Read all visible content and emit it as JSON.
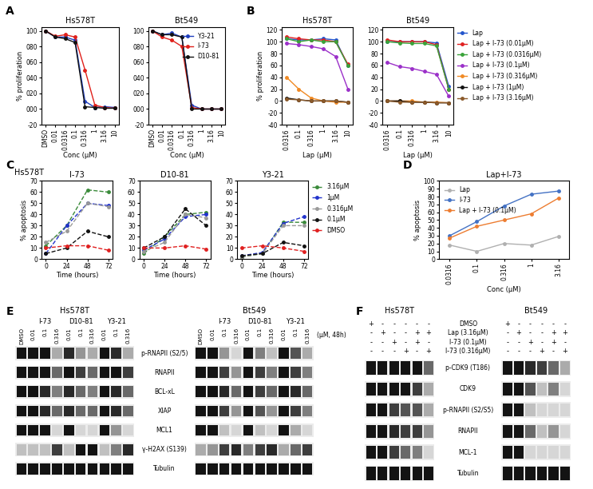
{
  "chart_data": [
    {
      "panel": "A",
      "type": "line",
      "title": "Hs578T",
      "categories": [
        "DMSO",
        "0.01",
        "0.0316",
        "0.1",
        "0.316",
        "1",
        "3.16",
        "10"
      ],
      "xlabel": "Conc (μM)",
      "ylabel": "% proliferation",
      "ylim": [
        -20,
        105
      ],
      "yticks": [
        -20,
        {
          "value": 0,
          "label": "000"
        },
        {
          "value": 20,
          "label": "020"
        },
        {
          "value": 40,
          "label": "040"
        },
        {
          "value": 60,
          "label": "060"
        },
        {
          "value": 80,
          "label": "080"
        },
        100
      ],
      "marker": "circle",
      "series": [
        {
          "color": "#1f3fbf",
          "values": [
            100,
            92,
            92,
            88,
            10,
            2,
            3,
            2
          ]
        },
        {
          "color": "#e0201b",
          "values": [
            100,
            93,
            95,
            92,
            50,
            5,
            2,
            1
          ]
        },
        {
          "color": "#111111",
          "values": [
            100,
            92,
            90,
            85,
            3,
            2,
            1,
            1
          ]
        }
      ]
    },
    {
      "type": "line",
      "title": "Bt549",
      "categories": [
        "DMSO",
        "0.01",
        "0.0316",
        "0.1",
        "0.316",
        "1",
        "3.16",
        "10"
      ],
      "xlabel": "Conc (μM)",
      "ylim": [
        -20,
        105
      ],
      "yticks": [
        -20,
        {
          "value": 0,
          "label": "000"
        },
        {
          "value": 20,
          "label": "020"
        },
        {
          "value": 40,
          "label": "040"
        },
        {
          "value": 60,
          "label": "060"
        },
        {
          "value": 80,
          "label": "080"
        },
        100
      ],
      "marker": "circle",
      "legend": "upper right",
      "series": [
        {
          "name": "Y3-21",
          "color": "#1f3fbf",
          "values": [
            100,
            95,
            97,
            92,
            5,
            0,
            0,
            0
          ]
        },
        {
          "name": "I-73",
          "color": "#e0201b",
          "values": [
            100,
            92,
            88,
            80,
            2,
            0,
            0,
            0
          ]
        },
        {
          "name": "D10-81",
          "color": "#111111",
          "values": [
            100,
            95,
            95,
            92,
            0,
            0,
            0,
            0
          ]
        }
      ]
    },
    {
      "panel": "B",
      "type": "line",
      "title": "Hs578T",
      "categories": [
        "0.0316",
        "0.1",
        "0.316",
        "1",
        "3.16",
        "10"
      ],
      "xlabel": "Lap (μM)",
      "ylabel": "% proliferation",
      "ylim": [
        -40,
        125
      ],
      "yticks": [
        -40,
        -20,
        0,
        20,
        40,
        60,
        80,
        100,
        120
      ],
      "marker": "circle",
      "series": [
        {
          "color": "#2255cc",
          "values": [
            105,
            103,
            103,
            105,
            103,
            60
          ]
        },
        {
          "color": "#e02020",
          "values": [
            108,
            105,
            103,
            103,
            100,
            62
          ]
        },
        {
          "color": "#3aa33a",
          "values": [
            105,
            100,
            103,
            100,
            100,
            60
          ]
        },
        {
          "color": "#9b30c9",
          "values": [
            97,
            95,
            92,
            88,
            75,
            20
          ]
        },
        {
          "color": "#f08a24",
          "values": [
            40,
            20,
            5,
            0,
            -2,
            -2
          ]
        },
        {
          "color": "#111111",
          "values": [
            5,
            2,
            0,
            0,
            0,
            -2
          ]
        },
        {
          "color": "#8b5a2b",
          "values": [
            3,
            2,
            0,
            0,
            0,
            -2
          ]
        }
      ]
    },
    {
      "type": "line",
      "title": "Bt549",
      "categories": [
        "0.0316",
        "0.1",
        "0.316",
        "1",
        "3.16",
        "10"
      ],
      "xlabel": "Lap (μM)",
      "ylim": [
        -40,
        125
      ],
      "yticks": [
        -40,
        -20,
        0,
        20,
        40,
        60,
        80,
        100,
        120
      ],
      "marker": "circle",
      "legend": "right",
      "series": [
        {
          "name": "Lap",
          "color": "#2255cc",
          "values": [
            100,
            100,
            100,
            100,
            98,
            25
          ]
        },
        {
          "name": "Lap + I-73 (0.01μM)",
          "color": "#e02020",
          "values": [
            103,
            100,
            100,
            100,
            95,
            20
          ]
        },
        {
          "name": "Lap + I-73 (0.0316μM)",
          "color": "#3aa33a",
          "values": [
            100,
            98,
            97,
            97,
            93,
            20
          ]
        },
        {
          "name": "Lap + I-73 (0.1μM)",
          "color": "#9b30c9",
          "values": [
            65,
            58,
            55,
            50,
            45,
            8
          ]
        },
        {
          "name": "Lap + I-73 (0.316μM)",
          "color": "#f08a24",
          "values": [
            0,
            0,
            0,
            -2,
            -2,
            -3
          ]
        },
        {
          "name": "Lap + I-73 (1μM)",
          "color": "#111111",
          "values": [
            0,
            0,
            -2,
            -2,
            -3,
            -3
          ]
        },
        {
          "name": "Lap + I-73 (3.16μM)",
          "color": "#8b5a2b",
          "values": [
            0,
            -2,
            -2,
            -2,
            -3,
            -3
          ]
        }
      ]
    },
    {
      "panel": "C",
      "type": "line",
      "subtitle": "Hs578T",
      "title": "I-73",
      "x": [
        0,
        24,
        48,
        72
      ],
      "xlim": [
        -5,
        77
      ],
      "xticks": [
        0,
        24,
        48,
        72
      ],
      "xlabel": "Time (hours)",
      "ylabel": "% apoptosis",
      "ylim": [
        0,
        70
      ],
      "yticks": [
        0,
        10,
        20,
        30,
        40,
        50,
        60,
        70
      ],
      "marker": "circle",
      "line_style": "dashed",
      "series": [
        {
          "color": "#3a8a3a",
          "values": [
            12,
            30,
            62,
            60
          ]
        },
        {
          "color": "#2233cc",
          "values": [
            5,
            30,
            50,
            48
          ]
        },
        {
          "color": "#999999",
          "values": [
            15,
            25,
            50,
            47
          ]
        },
        {
          "color": "#111111",
          "values": [
            5,
            10,
            25,
            20
          ]
        },
        {
          "color": "#e02020",
          "values": [
            10,
            12,
            12,
            8
          ]
        }
      ]
    },
    {
      "type": "line",
      "title": "D10-81",
      "x": [
        0,
        24,
        48,
        72
      ],
      "xlim": [
        -5,
        77
      ],
      "xticks": [
        0,
        24,
        48,
        72
      ],
      "xlabel": "Time (hours)",
      "ylim": [
        0,
        70
      ],
      "yticks": [
        0,
        10,
        20,
        30,
        40,
        50,
        60,
        70
      ],
      "marker": "circle",
      "line_style": "dashed",
      "series": [
        {
          "color": "#3a8a3a",
          "values": [
            5,
            20,
            40,
            42
          ]
        },
        {
          "color": "#2233cc",
          "values": [
            8,
            18,
            38,
            40
          ]
        },
        {
          "color": "#999999",
          "values": [
            7,
            15,
            40,
            37
          ]
        },
        {
          "color": "#111111",
          "values": [
            10,
            20,
            45,
            30
          ]
        },
        {
          "color": "#e02020",
          "values": [
            10,
            10,
            12,
            9
          ]
        }
      ]
    },
    {
      "type": "line",
      "title": "Y3-21",
      "x": [
        0,
        24,
        48,
        72
      ],
      "xlim": [
        -5,
        77
      ],
      "xticks": [
        0,
        24,
        48,
        72
      ],
      "xlabel": "Time (hours)",
      "ylim": [
        0,
        70
      ],
      "yticks": [
        0,
        10,
        20,
        30,
        40,
        50,
        60,
        70
      ],
      "marker": "circle",
      "line_style": "dashed",
      "legend": "right",
      "series": [
        {
          "name": "3.16μM",
          "color": "#3a8a3a",
          "values": [
            2,
            5,
            33,
            33
          ]
        },
        {
          "name": "1μM",
          "color": "#2233cc",
          "values": [
            3,
            6,
            32,
            38
          ]
        },
        {
          "name": "0.316μM",
          "color": "#999999",
          "values": [
            2,
            5,
            30,
            30
          ]
        },
        {
          "name": "0.1μM",
          "color": "#111111",
          "values": [
            3,
            5,
            15,
            12
          ]
        },
        {
          "name": "DMSO",
          "color": "#e02020",
          "values": [
            10,
            12,
            10,
            7
          ]
        }
      ]
    },
    {
      "panel": "D",
      "type": "line",
      "title": "Lap+I-73",
      "categories": [
        "0.0316",
        "0.1",
        "0.316",
        "1",
        "3.16"
      ],
      "xlabel": "Conc (μM)",
      "ylabel": "% apoptosis",
      "ylim": [
        0,
        100
      ],
      "yticks": [
        0,
        10,
        20,
        30,
        40,
        50,
        60,
        70,
        80,
        90,
        100
      ],
      "marker": "circle",
      "legend": "upper left",
      "series": [
        {
          "name": "Lap",
          "color": "#b0b0b0",
          "values": [
            18,
            10,
            20,
            18,
            29
          ]
        },
        {
          "name": "I-73",
          "color": "#4472c4",
          "values": [
            30,
            48,
            68,
            83,
            87
          ]
        },
        {
          "name": "Lap + I-73 (0.1μM)",
          "color": "#ed7d31",
          "values": [
            27,
            42,
            50,
            58,
            78
          ]
        }
      ]
    }
  ],
  "blots": [
    {
      "panel": "E",
      "unit_label": "(μM, 48h)",
      "header": [
        {
          "label": "DMSO"
        },
        {
          "group": "I-73",
          "doses": [
            "0.01",
            "0.1",
            "0.316"
          ]
        },
        {
          "group": "D10-81",
          "doses": [
            "0.01",
            "0.1",
            "0.316"
          ]
        },
        {
          "group": "Y3-21",
          "doses": [
            "0.01",
            "0.1",
            "0.316"
          ]
        }
      ],
      "rows": [
        "p-RNAPII (S2/5)",
        "RNAPII",
        "BCL-xL",
        "XIAP",
        "MCL1",
        "γ-H2AX (S139)",
        "Tubulin"
      ],
      "blocks": [
        {
          "cell_line": "Hs578T",
          "bands": [
            [
              1,
              1,
              1,
              0.3,
              0.9,
              0.4,
              0.3,
              1,
              0.9,
              0.3
            ],
            [
              1,
              1,
              1,
              0.6,
              1,
              0.8,
              0.6,
              1,
              1,
              0.8
            ],
            [
              1,
              1,
              0.9,
              0.5,
              0.9,
              0.6,
              0.5,
              1,
              0.9,
              0.6
            ],
            [
              1,
              1,
              0.9,
              0.6,
              0.9,
              0.6,
              0.6,
              1,
              0.9,
              0.6
            ],
            [
              1,
              1,
              1,
              0.1,
              1,
              0.1,
              0.1,
              1,
              0.4,
              0.1
            ],
            [
              0.2,
              0.2,
              0.2,
              0.8,
              0.2,
              1,
              1,
              0.2,
              0.5,
              0.9
            ],
            [
              1,
              1,
              1,
              1,
              1,
              1,
              1,
              1,
              1,
              1
            ]
          ]
        },
        {
          "cell_line": "Bt549",
          "bands": [
            [
              1,
              1,
              0.4,
              0.1,
              1,
              0.5,
              0.2,
              1,
              0.7,
              0.3
            ],
            [
              1,
              1,
              0.8,
              0.4,
              1,
              0.8,
              0.5,
              1,
              0.8,
              0.5
            ],
            [
              1,
              1,
              0.9,
              0.6,
              1,
              0.8,
              0.6,
              1,
              0.9,
              0.6
            ],
            [
              1,
              1,
              0.8,
              0.4,
              1,
              0.7,
              0.4,
              1,
              0.8,
              0.5
            ],
            [
              1,
              1,
              0.2,
              0.1,
              1,
              0.2,
              0.1,
              1,
              0.3,
              0.1
            ],
            [
              0.3,
              0.4,
              0.8,
              0.9,
              0.5,
              0.8,
              0.9,
              0.3,
              0.6,
              0.8
            ],
            [
              1,
              1,
              1,
              1,
              1,
              1,
              1,
              1,
              1,
              1
            ]
          ]
        }
      ]
    },
    {
      "panel": "F",
      "conditions": [
        {
          "label": "DMSO",
          "marks": [
            "+",
            "-",
            "-",
            "-",
            "-",
            "-"
          ]
        },
        {
          "label": "Lap (3.16μM)",
          "marks": [
            "-",
            "+",
            "-",
            "-",
            "+",
            "+"
          ]
        },
        {
          "label": "I-73 (0.1μM)",
          "marks": [
            "-",
            "-",
            "+",
            "-",
            "+",
            "-"
          ]
        },
        {
          "label": "I-73 (0.316μM)",
          "marks": [
            "-",
            "-",
            "-",
            "+",
            "-",
            "+"
          ]
        }
      ],
      "rows": [
        "p-CDK9 (T186)",
        "CDK9",
        "p-RNAPII (S2/S5)",
        "RNAPII",
        "MCL-1",
        "Tubulin"
      ],
      "blocks": [
        {
          "cell_line": "Hs578T",
          "bands": [
            [
              1,
              1,
              1,
              1,
              1,
              0.6
            ],
            [
              1,
              1,
              1,
              1,
              0.8,
              0.3
            ],
            [
              1,
              1,
              0.8,
              0.7,
              0.7,
              0.3
            ],
            [
              1,
              1,
              0.9,
              0.8,
              0.8,
              0.4
            ],
            [
              1,
              1,
              0.8,
              0.6,
              0.5,
              0.1
            ],
            [
              1,
              1,
              1,
              1,
              1,
              1
            ]
          ]
        },
        {
          "cell_line": "Bt549",
          "bands": [
            [
              1,
              1,
              0.9,
              0.8,
              0.6,
              0.3
            ],
            [
              1,
              1,
              0.7,
              0.2,
              0.5,
              0.1
            ],
            [
              1,
              1,
              0.2,
              0.1,
              0.1,
              0.1
            ],
            [
              1,
              1,
              0.6,
              0.2,
              0.4,
              0.1
            ],
            [
              1,
              1,
              0.1,
              0.1,
              0.1,
              0.1
            ],
            [
              1,
              1,
              1,
              1,
              1,
              1
            ]
          ]
        }
      ]
    }
  ]
}
